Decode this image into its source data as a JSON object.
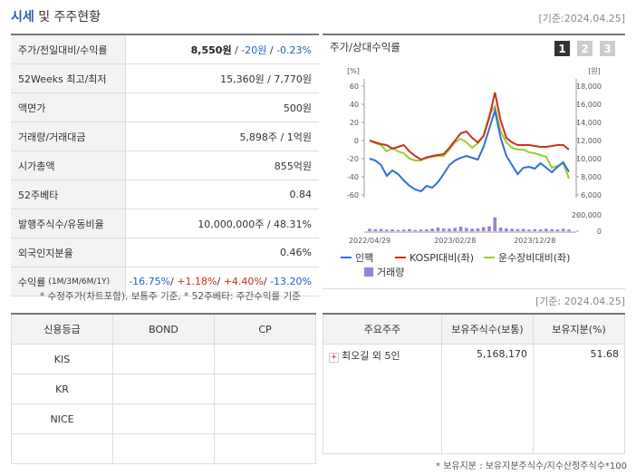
{
  "header": {
    "title_main": "시세",
    "title_rest": "및 주주현황",
    "date": "[기준:2024.04.25]"
  },
  "summary": {
    "rows": [
      {
        "label": "주가/전일대비/수익률",
        "parts": [
          {
            "text": "8,550원",
            "tone": "bold"
          },
          {
            "text": " / "
          },
          {
            "text": "-20원",
            "tone": "down"
          },
          {
            "text": " / "
          },
          {
            "text": "-0.23%",
            "tone": "down"
          }
        ]
      },
      {
        "label": "52Weeks 최고/최저",
        "parts": [
          {
            "text": "15,360원 / 7,770원"
          }
        ]
      },
      {
        "label": "액면가",
        "parts": [
          {
            "text": "500원"
          }
        ]
      },
      {
        "label": "거래량/거래대금",
        "parts": [
          {
            "text": "5,898주 / 1억원"
          }
        ]
      },
      {
        "label": "시가총액",
        "parts": [
          {
            "text": "855억원"
          }
        ]
      },
      {
        "label": "52주베타",
        "parts": [
          {
            "text": "0.84"
          }
        ]
      },
      {
        "label": "발행주식수/유동비율",
        "parts": [
          {
            "text": "10,000,000주 / 48.31%"
          }
        ]
      },
      {
        "label": "외국인지분율",
        "parts": [
          {
            "text": "0.46%"
          }
        ]
      },
      {
        "label": "수익률",
        "sub": "(1M/3M/6M/1Y)",
        "parts": [
          {
            "text": "-16.75%",
            "tone": "down"
          },
          {
            "text": "/ "
          },
          {
            "text": "+1.18%",
            "tone": "up"
          },
          {
            "text": "/ "
          },
          {
            "text": "+4.40%",
            "tone": "up"
          },
          {
            "text": "/ "
          },
          {
            "text": "-13.20%",
            "tone": "down"
          }
        ]
      }
    ],
    "note": "* 수정주가(차트포함), 보통주 기준, * 52주베타: 주간수익률 기준"
  },
  "chart_tabs": [
    "1",
    "2",
    "3"
  ],
  "chart_data": {
    "type": "line",
    "title": "주가/상대수익률",
    "categories": [
      "2022/04/29",
      null,
      null,
      null,
      null,
      null,
      null,
      null,
      null,
      null,
      null,
      null,
      null,
      null,
      null,
      "2023/02/28",
      null,
      null,
      null,
      null,
      null,
      null,
      null,
      null,
      null,
      null,
      null,
      null,
      null,
      "2023/12/28",
      null,
      null,
      null,
      null,
      null,
      null
    ],
    "y_unit": "[%]",
    "ylim": [
      -60,
      60
    ],
    "yticks": [
      60,
      40,
      20,
      0,
      -20,
      -40,
      -60
    ],
    "y2_unit": "[원]",
    "y2lim": [
      6000,
      18000
    ],
    "y2ticks": [
      {
        "value": 18000,
        "label": "18,000"
      },
      {
        "value": 16000,
        "label": "16,000"
      },
      {
        "value": 14000,
        "label": "14,000"
      },
      {
        "value": 12000,
        "label": "12,000"
      },
      {
        "value": 10000,
        "label": "10,000"
      },
      {
        "value": 8000,
        "label": "8,000"
      },
      {
        "value": 6000,
        "label": "6,000"
      }
    ],
    "grid": false,
    "series": [
      {
        "name": "인팩",
        "color": "#2f6fd6",
        "axis": "y2",
        "values": [
          10000,
          9800,
          9300,
          8100,
          8700,
          8300,
          7600,
          7000,
          6600,
          6400,
          7000,
          6800,
          7400,
          8300,
          9300,
          9800,
          10100,
          10300,
          10100,
          9900,
          11300,
          13300,
          15300,
          12300,
          10300,
          9300,
          8300,
          9000,
          9100,
          8900,
          9500,
          9000,
          8500,
          9100,
          9600,
          8550
        ]
      },
      {
        "name": "KOSPI대비(좌)",
        "color": "#c8321e",
        "values": [
          0,
          -2,
          -4,
          -5,
          -9,
          -7,
          -5,
          -12,
          -17,
          -21,
          -19,
          -17,
          -16,
          -15,
          -8,
          0,
          8,
          10,
          3,
          -2,
          5,
          25,
          53,
          22,
          3,
          -2,
          -5,
          -5,
          -5,
          -6,
          -7,
          -7,
          -6,
          -5,
          -5,
          -10
        ]
      },
      {
        "name": "운수장비대비(좌)",
        "color": "#9acd32",
        "values": [
          0,
          -3,
          -5,
          -12,
          -8,
          -12,
          -14,
          -20,
          -22,
          -22,
          -18,
          -18,
          -17,
          -17,
          -10,
          -2,
          2,
          -2,
          -8,
          -3,
          5,
          28,
          38,
          10,
          -2,
          -8,
          -10,
          -10,
          -13,
          -14,
          -16,
          -18,
          -30,
          -28,
          -25,
          -42
        ]
      }
    ],
    "volume": {
      "name": "거래량",
      "color": "#9b7fd8",
      "ylim": [
        0,
        200000
      ],
      "yticks": [
        {
          "value": 200000,
          "label": "200,000"
        },
        0
      ],
      "values": [
        30000,
        25000,
        28000,
        18000,
        22000,
        15000,
        20000,
        26000,
        15000,
        20000,
        22000,
        30000,
        45000,
        35000,
        30000,
        40000,
        55000,
        40000,
        30000,
        35000,
        50000,
        60000,
        170000,
        45000,
        35000,
        30000,
        25000,
        28000,
        20000,
        25000,
        22000,
        30000,
        25000,
        20000,
        30000,
        20000
      ]
    }
  },
  "credit": {
    "headers": [
      "신용등급",
      "BOND",
      "CP"
    ],
    "agencies": [
      "KIS",
      "KR",
      "NICE"
    ]
  },
  "holders": {
    "date": "[기준: 2024.04.25]",
    "headers": [
      "주요주주",
      "보유주식수(보통)",
      "보유지분(%)"
    ],
    "rows": [
      [
        "최오길 외 5인",
        "5,168,170",
        "51.68"
      ]
    ],
    "note": "* 보유지분 : 보유지분주식수/지수산정주식수*100"
  }
}
